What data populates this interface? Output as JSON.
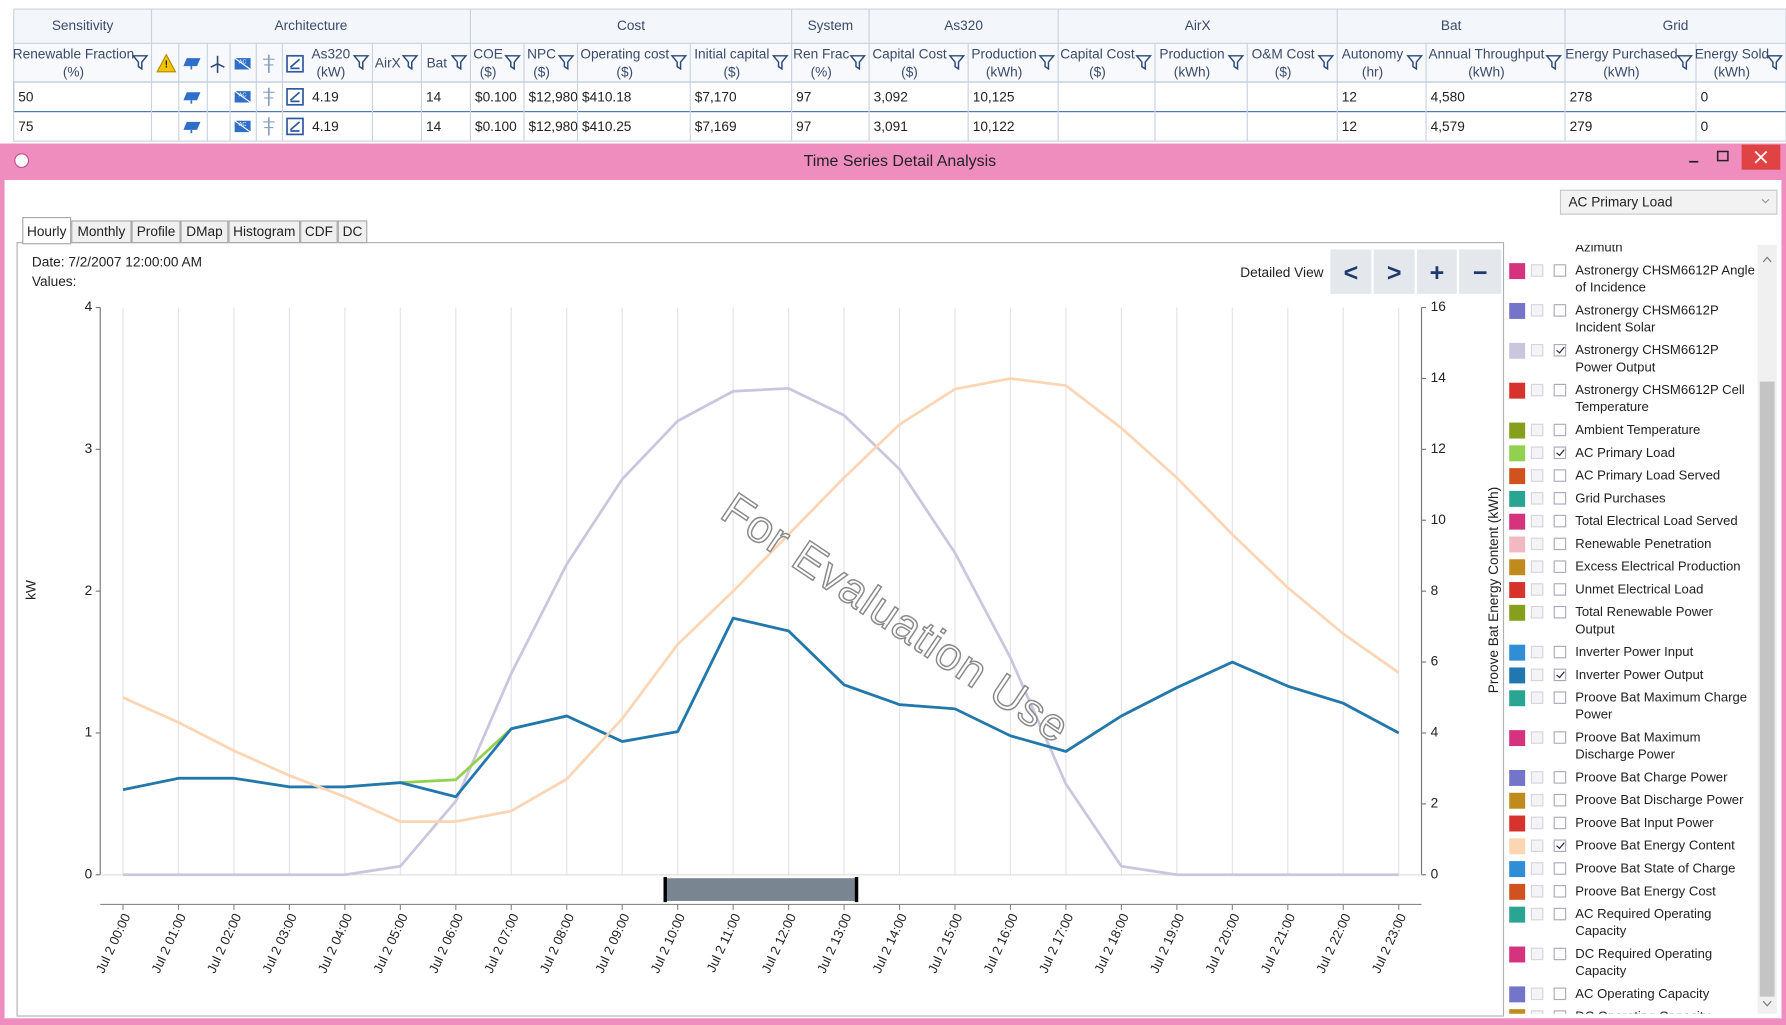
{
  "table": {
    "groups": [
      "Sensitivity",
      "Architecture",
      "Cost",
      "System",
      "As320",
      "AirX",
      "Bat",
      "Grid"
    ],
    "columns": [
      {
        "name": "Renewable Fraction",
        "unit": "(%)",
        "cells": [
          "50",
          "75"
        ]
      },
      {
        "name": "As320",
        "unit": "(kW)",
        "cells": [
          "4.19",
          "4.19"
        ]
      },
      {
        "name": "AirX"
      },
      {
        "name": "Bat",
        "cells": [
          "14",
          "14"
        ]
      },
      {
        "name": "COE",
        "unit": "($)",
        "cells": [
          "$0.100",
          "$0.100"
        ]
      },
      {
        "name": "NPC",
        "unit": "($)",
        "cells": [
          "$12,980",
          "$12,980"
        ]
      },
      {
        "name": "Operating cost",
        "unit": "($)",
        "cells": [
          "$410.18",
          "$410.25"
        ]
      },
      {
        "name": "Initial capital",
        "unit": "($)",
        "cells": [
          "$7,170",
          "$7,169"
        ]
      },
      {
        "name": "Ren Frac",
        "unit": "(%)",
        "cells": [
          "97",
          "97"
        ]
      },
      {
        "name": "Capital Cost",
        "unit": "($)",
        "cells": [
          "3,092",
          "3,091"
        ]
      },
      {
        "name": "Production",
        "unit": "(kWh)",
        "cells": [
          "10,125",
          "10,122"
        ]
      },
      {
        "name": "Capital Cost",
        "unit": "($)"
      },
      {
        "name": "Production",
        "unit": "(kWh)"
      },
      {
        "name": "O&M Cost",
        "unit": "($)"
      },
      {
        "name": "Autonomy",
        "unit": "(hr)",
        "cells": [
          "12",
          "12"
        ]
      },
      {
        "name": "Annual Throughput",
        "unit": "(kWh)",
        "cells": [
          "4,580",
          "4,579"
        ]
      },
      {
        "name": "Energy Purchased",
        "unit": "(kWh)",
        "cells": [
          "278",
          "279"
        ]
      },
      {
        "name": "Energy Sold",
        "unit": "(kWh)",
        "cells": [
          "0",
          "0"
        ]
      }
    ]
  },
  "window": {
    "title": "Time Series Detail Analysis",
    "dropdown": "AC Primary Load",
    "tabs": [
      "Hourly",
      "Monthly",
      "Profile",
      "DMap",
      "Histogram",
      "CDF",
      "DC"
    ],
    "date_label": "Date:  7/2/2007 12:00:00 AM",
    "values_label": "Values:",
    "detailed_view": "Detailed View",
    "nav_buttons": [
      "<",
      ">",
      "+",
      "−"
    ],
    "watermark": "For Evaluation Use"
  },
  "chart_data": {
    "type": "line",
    "y_label": "kW",
    "y2_label": "Proove Bat Energy Content (kWh)",
    "categories": [
      "Jul 2 00:00",
      "Jul 2 01:00",
      "Jul 2 02:00",
      "Jul 2 03:00",
      "Jul 2 04:00",
      "Jul 2 05:00",
      "Jul 2 06:00",
      "Jul 2 07:00",
      "Jul 2 08:00",
      "Jul 2 09:00",
      "Jul 2 10:00",
      "Jul 2 11:00",
      "Jul 2 12:00",
      "Jul 2 13:00",
      "Jul 2 14:00",
      "Jul 2 15:00",
      "Jul 2 16:00",
      "Jul 2 17:00",
      "Jul 2 18:00",
      "Jul 2 19:00",
      "Jul 2 20:00",
      "Jul 2 21:00",
      "Jul 2 22:00",
      "Jul 2 23:00"
    ],
    "ylim": [
      0,
      4
    ],
    "yticks": [
      0,
      1,
      2,
      3,
      4
    ],
    "y2lim": [
      0,
      16
    ],
    "y2ticks": [
      0,
      2,
      4,
      6,
      8,
      10,
      12,
      14,
      16
    ],
    "series": [
      {
        "name": "Azimuth"
      },
      {
        "name": "Astronergy CHSM6612P Angle of Incidence",
        "color": "#d6337f",
        "visible": false
      },
      {
        "name": "Astronergy CHSM6612P Incident Solar",
        "color": "#7474c8",
        "visible": false
      },
      {
        "name": "Astronergy CHSM6612P Power Output",
        "color": "#cbc6de",
        "visible": true,
        "values": [
          0,
          0,
          0,
          0,
          0,
          0.06,
          0.52,
          1.42,
          2.19,
          2.79,
          3.2,
          3.41,
          3.43,
          3.24,
          2.86,
          2.27,
          1.53,
          0.64,
          0.06,
          0,
          0,
          0,
          0,
          0
        ]
      },
      {
        "name": "Astronergy CHSM6612P Cell Temperature",
        "color": "#d8322f",
        "visible": false
      },
      {
        "name": "Ambient Temperature",
        "color": "#86a01e",
        "visible": false
      },
      {
        "name": "AC Primary Load",
        "color": "#92d050",
        "visible": true,
        "values": [
          0.6,
          0.68,
          0.68,
          0.62,
          0.62,
          0.65,
          0.67,
          1.03,
          1.12,
          0.94,
          1.01,
          1.81,
          1.72,
          1.34,
          1.2,
          1.17,
          0.98,
          0.87,
          1.12,
          1.32,
          1.5,
          1.33,
          1.21,
          1.0
        ]
      },
      {
        "name": "AC Primary Load Served",
        "color": "#d0531f",
        "visible": false
      },
      {
        "name": "Grid Purchases",
        "color": "#2aa592",
        "visible": false
      },
      {
        "name": "Total Electrical Load Served",
        "color": "#d6337f",
        "visible": false
      },
      {
        "name": "Renewable Penetration",
        "color": "#f2b9c3",
        "visible": false
      },
      {
        "name": "Excess Electrical Production",
        "color": "#c08a1c",
        "visible": false
      },
      {
        "name": "Unmet Electrical Load",
        "color": "#d8322f",
        "visible": false
      },
      {
        "name": "Total Renewable Power Output",
        "color": "#86a01e",
        "visible": false
      },
      {
        "name": "Inverter Power Input",
        "color": "#2f8ed6",
        "visible": false
      },
      {
        "name": "Inverter Power Output",
        "color": "#2277b0",
        "visible": true,
        "values": [
          0.6,
          0.68,
          0.68,
          0.62,
          0.62,
          0.65,
          0.55,
          1.03,
          1.12,
          0.94,
          1.01,
          1.81,
          1.72,
          1.34,
          1.2,
          1.17,
          0.98,
          0.87,
          1.12,
          1.32,
          1.5,
          1.33,
          1.21,
          1.0
        ]
      },
      {
        "name": "Proove Bat Maximum Charge Power",
        "color": "#2aa592",
        "visible": false
      },
      {
        "name": "Proove Bat Maximum Discharge Power",
        "color": "#d6337f",
        "visible": false
      },
      {
        "name": "Proove Bat Charge Power",
        "color": "#7474c8",
        "visible": false
      },
      {
        "name": "Proove Bat Discharge Power",
        "color": "#c08a1c",
        "visible": false
      },
      {
        "name": "Proove Bat Input Power",
        "color": "#d8322f",
        "visible": false
      },
      {
        "name": "Proove Bat Energy Content",
        "color": "#fcd5b4",
        "visible": true,
        "axis": "y2",
        "values": [
          5.0,
          4.3,
          3.5,
          2.8,
          2.2,
          1.5,
          1.5,
          1.8,
          2.7,
          4.4,
          6.5,
          8.0,
          9.6,
          11.2,
          12.7,
          13.7,
          14.0,
          13.8,
          12.6,
          11.2,
          9.6,
          8.1,
          6.8,
          5.7
        ]
      },
      {
        "name": "Proove Bat State of Charge",
        "color": "#2f8ed6",
        "visible": false
      },
      {
        "name": "Proove Bat Energy Cost",
        "color": "#d0531f",
        "visible": false
      },
      {
        "name": "AC Required Operating Capacity",
        "color": "#2aa592",
        "visible": false
      },
      {
        "name": "DC Required Operating Capacity",
        "color": "#d6337f",
        "visible": false
      },
      {
        "name": "AC Operating Capacity",
        "color": "#7474c8",
        "visible": false
      },
      {
        "name": "DC Operating Capacity",
        "color": "#c08a1c",
        "visible": false
      }
    ]
  }
}
